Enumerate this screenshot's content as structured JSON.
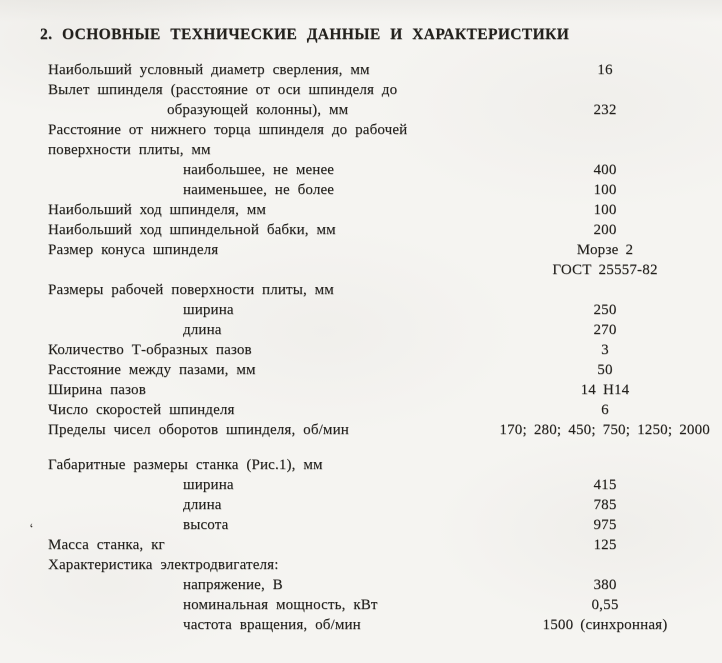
{
  "page": {
    "title": "2. ОСНОВНЫЕ  ТЕХНИЧЕСКИЕ  ДАННЫЕ  И ХАРАКТЕРИСТИКИ",
    "artifact_mark": "ʻ",
    "colors": {
      "paper": "#f5f4f1",
      "ink": "#23211d"
    }
  },
  "specs": {
    "rows": [
      {
        "label": "Наибольший условный диаметр сверления, мм",
        "value": "16"
      },
      {
        "label": "Вылет шпинделя (расстояние от оси шпинделя до",
        "value": ""
      },
      {
        "label": "образующей колонны), мм",
        "value": "232"
      },
      {
        "label": "Расстояние от нижнего торца шпинделя до рабочей",
        "value": ""
      },
      {
        "label": "поверхности плиты, мм",
        "value": ""
      },
      {
        "label": "наибольшее, не менее",
        "value": "400"
      },
      {
        "label": "наименьшее, не более",
        "value": "100"
      },
      {
        "label": "Наибольший ход шпинделя, мм",
        "value": "100"
      },
      {
        "label": "Наибольший ход шпиндельной бабки, мм",
        "value": "200"
      },
      {
        "label": "Размер конуса шпинделя",
        "value": "Морзе 2"
      },
      {
        "label": "",
        "value": "ГОСТ 25557-82"
      },
      {
        "label": "Размеры рабочей поверхности плиты, мм",
        "value": ""
      },
      {
        "label": "ширина",
        "value": "250"
      },
      {
        "label": "длина",
        "value": "270"
      },
      {
        "label": "Количество Т-образных пазов",
        "value": "3"
      },
      {
        "label": "Расстояние между пазами, мм",
        "value": "50"
      },
      {
        "label": "Ширина пазов",
        "value": "14 Н14"
      },
      {
        "label": "Число скоростей шпинделя",
        "value": "6"
      },
      {
        "label": "Пределы чисел оборотов шпинделя, об/мин",
        "value": "170;  280;  450;  750;  1250;  2000"
      },
      {
        "label": "Габаритные размеры станка (Рис.1), мм",
        "value": ""
      },
      {
        "label": "ширина",
        "value": "415"
      },
      {
        "label": "длина",
        "value": "785"
      },
      {
        "label": "высота",
        "value": "975"
      },
      {
        "label": "Масса станка, кг",
        "value": "125"
      },
      {
        "label": "Характеристика электродвигателя:",
        "value": ""
      },
      {
        "label": "напряжение, В",
        "value": "380"
      },
      {
        "label": "номинальная мощность, кВт",
        "value": "0,55"
      },
      {
        "label": "частота вращения, об/мин",
        "value": "1500 (синхронная)"
      }
    ]
  }
}
